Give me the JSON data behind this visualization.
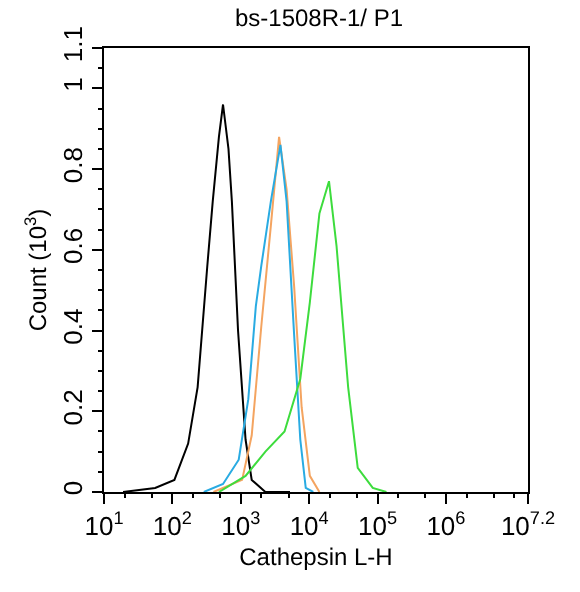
{
  "chart_data": {
    "type": "line",
    "title": "bs-1508R-1/ P1",
    "xlabel": "Cathepsin L-H",
    "ylabel": "Count (10$^{3}$)",
    "log": "x",
    "marker": "none",
    "line_style": "solid",
    "xlim": [
      10,
      15848932
    ],
    "xticks": [
      {
        "value": 10,
        "label": "10$^{1}$"
      },
      {
        "value": 100,
        "label": "10$^{2}$"
      },
      {
        "value": 1000,
        "label": "10$^{3}$"
      },
      {
        "value": 10000,
        "label": "10$^{4}$"
      },
      {
        "value": 100000,
        "label": "10$^{5}$"
      },
      {
        "value": 1000000,
        "label": "10$^{6}$"
      },
      {
        "value": 15848932,
        "label": "10$^{7.2}$"
      }
    ],
    "ylim": [
      0,
      1.1
    ],
    "yticks": [
      0,
      0.2,
      0.4,
      0.6,
      0.8,
      1,
      1.1
    ],
    "series": [
      {
        "color": "#000000",
        "x": [
          19,
          56,
          107,
          170,
          234,
          324,
          389,
          479,
          550,
          661,
          741,
          912,
          1175,
          1445,
          2291,
          5248
        ],
        "values": [
          0,
          0.01,
          0.03,
          0.12,
          0.26,
          0.56,
          0.72,
          0.88,
          0.96,
          0.85,
          0.72,
          0.4,
          0.13,
          0.03,
          0,
          0
        ]
      },
      {
        "color": "#f4a460",
        "x": [
          398,
          1047,
          1445,
          1995,
          2754,
          3631,
          4677,
          6026,
          7762,
          10233,
          14125
        ],
        "values": [
          0,
          0.03,
          0.14,
          0.41,
          0.66,
          0.88,
          0.75,
          0.51,
          0.21,
          0.04,
          0
        ]
      },
      {
        "color": "#29abe2",
        "x": [
          288,
          550,
          933,
          1288,
          1660,
          1995,
          2754,
          3802,
          4677,
          6026,
          7413,
          8913,
          11482
        ],
        "values": [
          0,
          0.02,
          0.08,
          0.23,
          0.46,
          0.56,
          0.72,
          0.86,
          0.72,
          0.39,
          0.13,
          0.01,
          0
        ]
      },
      {
        "color": "#3ddc3d",
        "x": [
          479,
          1175,
          2291,
          4365,
          7413,
          10233,
          14125,
          19498,
          25119,
          37154,
          51286,
          85114,
          134896
        ],
        "values": [
          0,
          0.04,
          0.1,
          0.15,
          0.28,
          0.47,
          0.69,
          0.77,
          0.61,
          0.26,
          0.06,
          0.01,
          0
        ]
      }
    ]
  }
}
